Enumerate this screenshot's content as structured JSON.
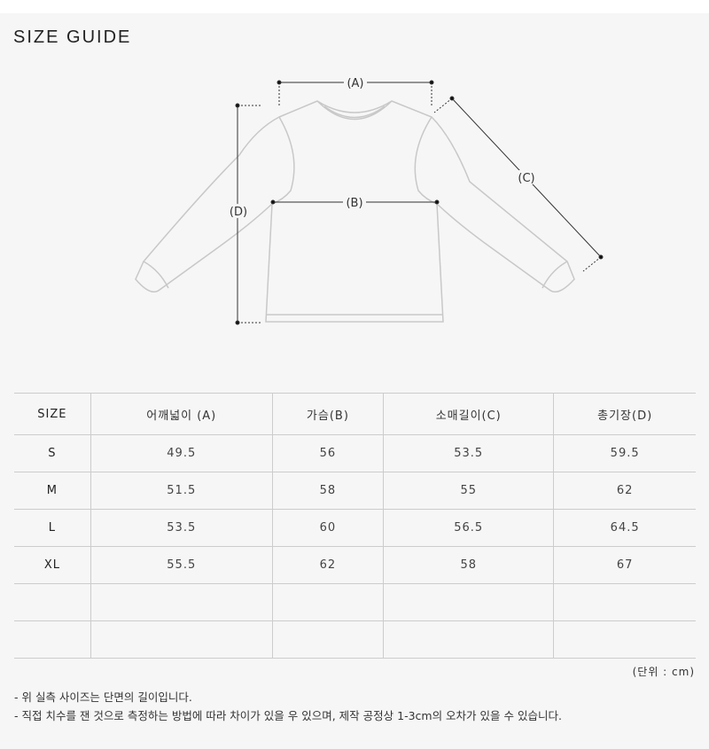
{
  "title": "SIZE GUIDE",
  "diagram": {
    "labels": {
      "a": "(A)",
      "b": "(B)",
      "c": "(C)",
      "d": "(D)"
    }
  },
  "table": {
    "headers": [
      "SIZE",
      "어깨넓이 (A)",
      "가슴(B)",
      "소매길이(C)",
      "총기장(D)"
    ],
    "rows": [
      [
        "S",
        "49.5",
        "56",
        "53.5",
        "59.5"
      ],
      [
        "M",
        "51.5",
        "58",
        "55",
        "62"
      ],
      [
        "L",
        "53.5",
        "60",
        "56.5",
        "64.5"
      ],
      [
        "XL",
        "55.5",
        "62",
        "58",
        "67"
      ],
      [
        "",
        "",
        "",
        "",
        ""
      ],
      [
        "",
        "",
        "",
        "",
        ""
      ]
    ]
  },
  "unit": "(단위 : cm)",
  "notes": [
    "- 위 실측 사이즈는 단면의 길이입니다.",
    "- 직접 치수를 잰 것으로 측정하는 방법에 따라 차이가 있을 우 있으며, 제작 공정상 1-3cm의 오차가 있을 수 있습니다."
  ]
}
